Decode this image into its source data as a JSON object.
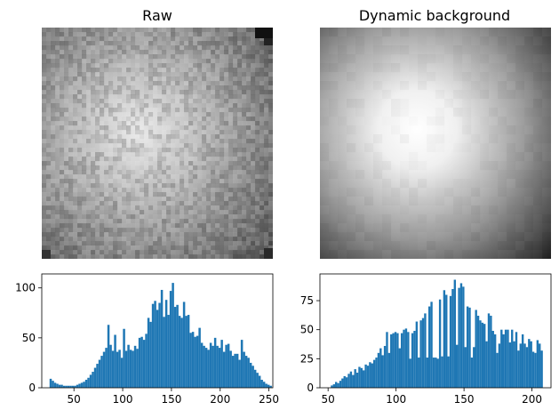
{
  "panels": {
    "raw": {
      "title": "Raw"
    },
    "bg": {
      "title": "Dynamic background"
    }
  },
  "colors": {
    "bar": "#1f77b4",
    "axis": "#000000"
  },
  "chart_data": [
    {
      "type": "heatmap",
      "title": "Raw",
      "colormap": "gray",
      "description_values": "grayscale microscopy frame, bright near center, dark at edges",
      "axes_visible": false
    },
    {
      "type": "heatmap",
      "title": "Dynamic background",
      "colormap": "gray",
      "axes_visible": false
    },
    {
      "type": "bar",
      "subtype": "histogram",
      "xlim": [
        17,
        254
      ],
      "ylim": [
        0,
        114
      ],
      "xticks": [
        50,
        100,
        150,
        200,
        250
      ],
      "yticks": [
        0,
        50,
        100
      ],
      "bin_start": 25,
      "bin_width": 2.28,
      "counts": [
        9,
        7,
        5,
        4,
        3,
        3,
        2,
        2,
        2,
        2,
        2,
        2,
        3,
        4,
        5,
        6,
        8,
        10,
        13,
        16,
        20,
        24,
        28,
        32,
        36,
        40,
        63,
        43,
        37,
        53,
        36,
        38,
        30,
        59,
        37,
        43,
        38,
        37,
        42,
        39,
        50,
        51,
        48,
        54,
        70,
        66,
        84,
        87,
        78,
        85,
        98,
        71,
        88,
        73,
        97,
        105,
        81,
        83,
        72,
        70,
        86,
        72,
        73,
        55,
        56,
        51,
        52,
        60,
        45,
        42,
        40,
        38,
        45,
        42,
        50,
        42,
        40,
        48,
        36,
        43,
        44,
        37,
        32,
        34,
        34,
        28,
        48,
        36,
        32,
        30,
        25,
        22,
        18,
        15,
        12,
        8,
        6,
        4,
        3,
        2
      ]
    },
    {
      "type": "bar",
      "subtype": "histogram",
      "xlim": [
        44,
        214
      ],
      "ylim": [
        0,
        98
      ],
      "xticks": [
        50,
        100,
        150,
        200
      ],
      "yticks": [
        0,
        25,
        50,
        75
      ],
      "bin_start": 52,
      "bin_width": 1.56,
      "counts": [
        2,
        3,
        5,
        4,
        6,
        8,
        10,
        9,
        12,
        14,
        11,
        16,
        13,
        18,
        17,
        15,
        20,
        19,
        22,
        21,
        24,
        26,
        30,
        34,
        28,
        36,
        48,
        30,
        46,
        47,
        48,
        47,
        34,
        47,
        50,
        51,
        48,
        25,
        47,
        49,
        57,
        26,
        58,
        60,
        64,
        26,
        70,
        74,
        26,
        26,
        25,
        76,
        27,
        84,
        80,
        27,
        79,
        85,
        93,
        37,
        86,
        90,
        87,
        35,
        70,
        69,
        26,
        35,
        67,
        62,
        58,
        56,
        55,
        40,
        64,
        62,
        49,
        46,
        30,
        38,
        50,
        46,
        50,
        50,
        39,
        50,
        40,
        48,
        32,
        38,
        46,
        38,
        35,
        42,
        40,
        31,
        30,
        41,
        38,
        32
      ]
    }
  ]
}
